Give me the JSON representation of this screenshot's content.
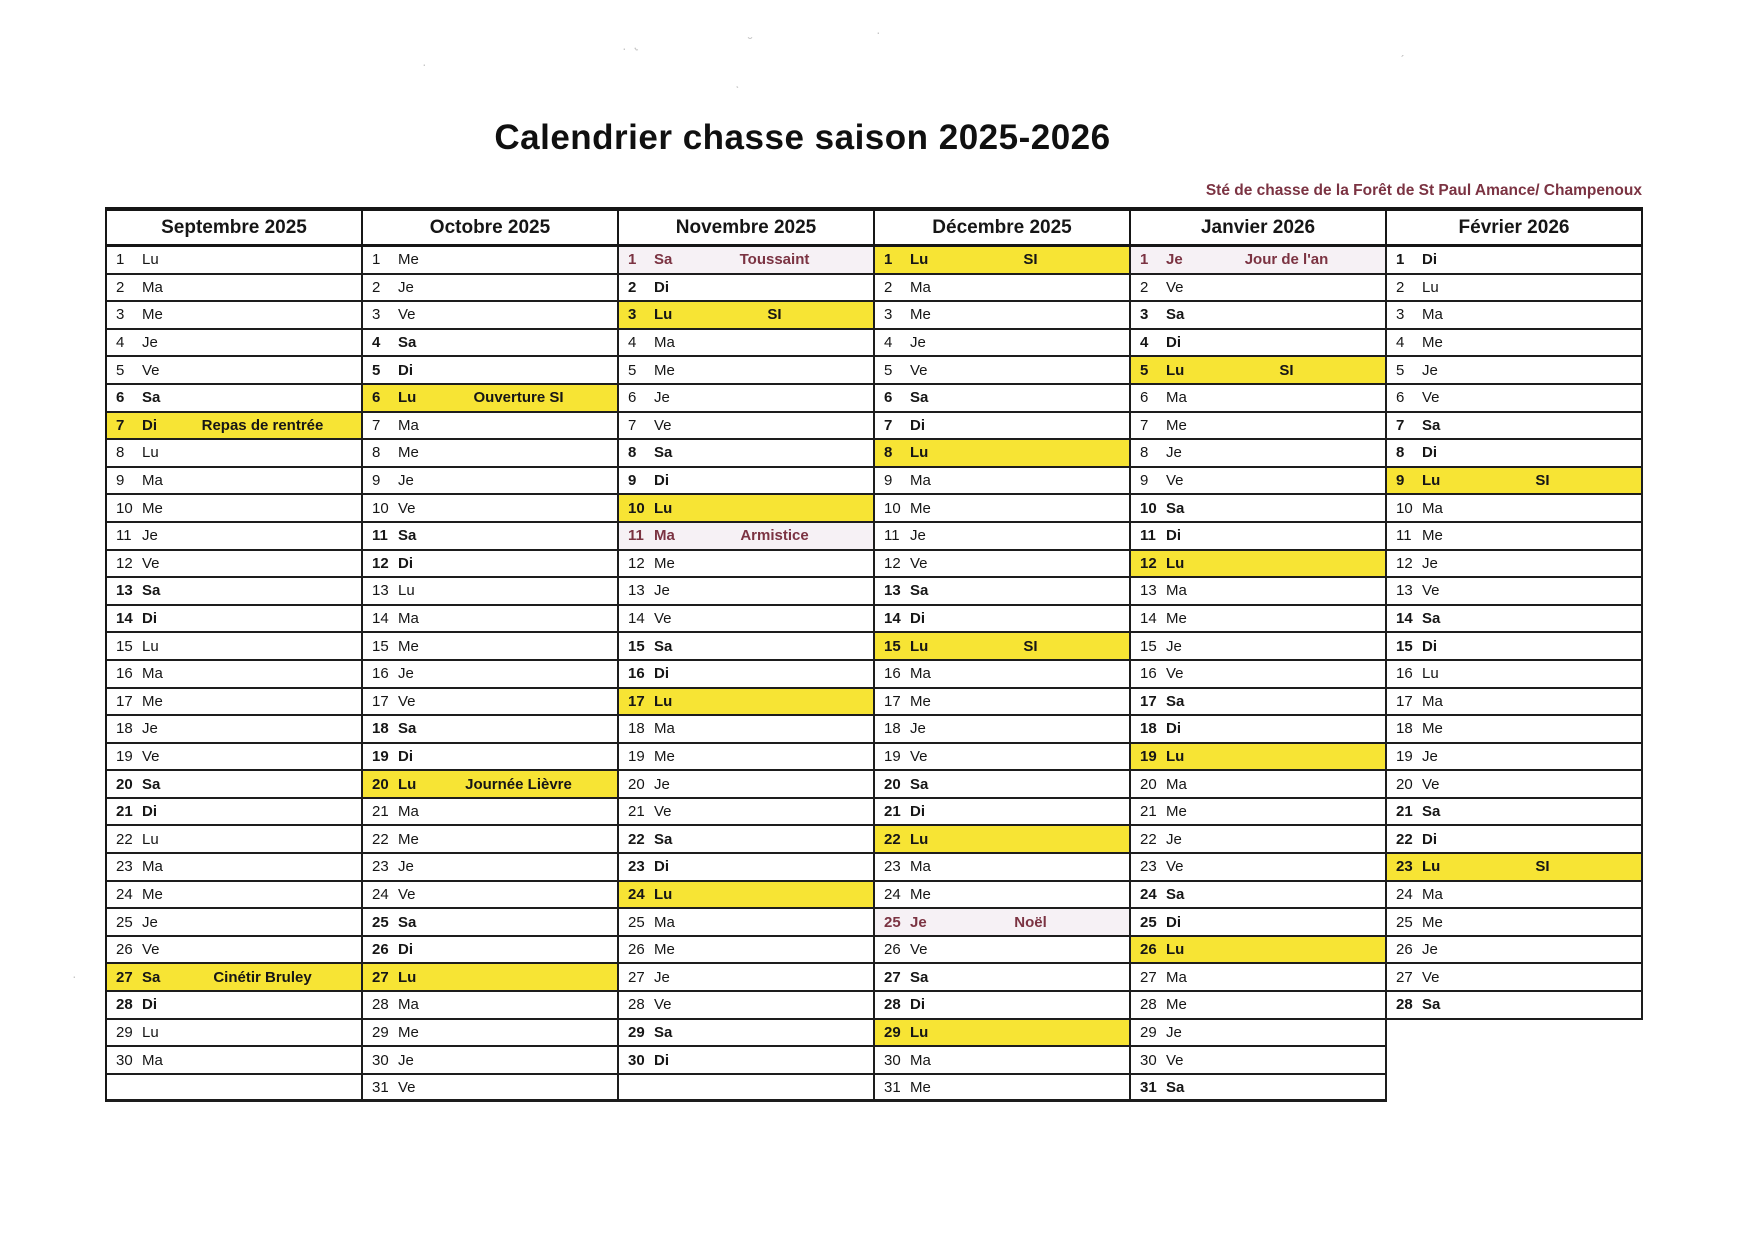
{
  "title": "Calendrier chasse saison 2025-2026",
  "subtitle": "Sté de chasse de la Forêt de St Paul Amance/ Champenoux",
  "colors": {
    "event_highlight": "#f7e434",
    "holiday_text": "#7b3342",
    "holiday_background": "#f6f1f5",
    "grid_line": "#1d1d1d"
  },
  "legend_note": "",
  "months": [
    {
      "name": "Septembre 2025",
      "days": [
        {
          "d": 1,
          "w": "Lu"
        },
        {
          "d": 2,
          "w": "Ma"
        },
        {
          "d": 3,
          "w": "Me"
        },
        {
          "d": 4,
          "w": "Je"
        },
        {
          "d": 5,
          "w": "Ve"
        },
        {
          "d": 6,
          "w": "Sa"
        },
        {
          "d": 7,
          "w": "Di",
          "note": "Repas de rentrée",
          "mark": "event"
        },
        {
          "d": 8,
          "w": "Lu"
        },
        {
          "d": 9,
          "w": "Ma"
        },
        {
          "d": 10,
          "w": "Me"
        },
        {
          "d": 11,
          "w": "Je"
        },
        {
          "d": 12,
          "w": "Ve"
        },
        {
          "d": 13,
          "w": "Sa"
        },
        {
          "d": 14,
          "w": "Di"
        },
        {
          "d": 15,
          "w": "Lu"
        },
        {
          "d": 16,
          "w": "Ma"
        },
        {
          "d": 17,
          "w": "Me"
        },
        {
          "d": 18,
          "w": "Je"
        },
        {
          "d": 19,
          "w": "Ve"
        },
        {
          "d": 20,
          "w": "Sa"
        },
        {
          "d": 21,
          "w": "Di"
        },
        {
          "d": 22,
          "w": "Lu"
        },
        {
          "d": 23,
          "w": "Ma"
        },
        {
          "d": 24,
          "w": "Me"
        },
        {
          "d": 25,
          "w": "Je"
        },
        {
          "d": 26,
          "w": "Ve"
        },
        {
          "d": 27,
          "w": "Sa",
          "note": "Cinétir Bruley",
          "mark": "event"
        },
        {
          "d": 28,
          "w": "Di"
        },
        {
          "d": 29,
          "w": "Lu"
        },
        {
          "d": 30,
          "w": "Ma"
        }
      ]
    },
    {
      "name": "Octobre 2025",
      "days": [
        {
          "d": 1,
          "w": "Me"
        },
        {
          "d": 2,
          "w": "Je"
        },
        {
          "d": 3,
          "w": "Ve"
        },
        {
          "d": 4,
          "w": "Sa"
        },
        {
          "d": 5,
          "w": "Di"
        },
        {
          "d": 6,
          "w": "Lu",
          "note": "Ouverture SI",
          "mark": "event"
        },
        {
          "d": 7,
          "w": "Ma"
        },
        {
          "d": 8,
          "w": "Me"
        },
        {
          "d": 9,
          "w": "Je"
        },
        {
          "d": 10,
          "w": "Ve"
        },
        {
          "d": 11,
          "w": "Sa"
        },
        {
          "d": 12,
          "w": "Di"
        },
        {
          "d": 13,
          "w": "Lu"
        },
        {
          "d": 14,
          "w": "Ma"
        },
        {
          "d": 15,
          "w": "Me"
        },
        {
          "d": 16,
          "w": "Je"
        },
        {
          "d": 17,
          "w": "Ve"
        },
        {
          "d": 18,
          "w": "Sa"
        },
        {
          "d": 19,
          "w": "Di"
        },
        {
          "d": 20,
          "w": "Lu",
          "note": "Journée Lièvre",
          "mark": "event"
        },
        {
          "d": 21,
          "w": "Ma"
        },
        {
          "d": 22,
          "w": "Me"
        },
        {
          "d": 23,
          "w": "Je"
        },
        {
          "d": 24,
          "w": "Ve"
        },
        {
          "d": 25,
          "w": "Sa"
        },
        {
          "d": 26,
          "w": "Di"
        },
        {
          "d": 27,
          "w": "Lu",
          "mark": "event"
        },
        {
          "d": 28,
          "w": "Ma"
        },
        {
          "d": 29,
          "w": "Me"
        },
        {
          "d": 30,
          "w": "Je"
        },
        {
          "d": 31,
          "w": "Ve"
        }
      ]
    },
    {
      "name": "Novembre 2025",
      "days": [
        {
          "d": 1,
          "w": "Sa",
          "note": "Toussaint",
          "mark": "holiday"
        },
        {
          "d": 2,
          "w": "Di"
        },
        {
          "d": 3,
          "w": "Lu",
          "note": "SI",
          "mark": "event"
        },
        {
          "d": 4,
          "w": "Ma"
        },
        {
          "d": 5,
          "w": "Me"
        },
        {
          "d": 6,
          "w": "Je"
        },
        {
          "d": 7,
          "w": "Ve"
        },
        {
          "d": 8,
          "w": "Sa"
        },
        {
          "d": 9,
          "w": "Di"
        },
        {
          "d": 10,
          "w": "Lu",
          "mark": "event"
        },
        {
          "d": 11,
          "w": "Ma",
          "note": "Armistice",
          "mark": "holiday"
        },
        {
          "d": 12,
          "w": "Me"
        },
        {
          "d": 13,
          "w": "Je"
        },
        {
          "d": 14,
          "w": "Ve"
        },
        {
          "d": 15,
          "w": "Sa"
        },
        {
          "d": 16,
          "w": "Di"
        },
        {
          "d": 17,
          "w": "Lu",
          "mark": "event"
        },
        {
          "d": 18,
          "w": "Ma"
        },
        {
          "d": 19,
          "w": "Me"
        },
        {
          "d": 20,
          "w": "Je"
        },
        {
          "d": 21,
          "w": "Ve"
        },
        {
          "d": 22,
          "w": "Sa"
        },
        {
          "d": 23,
          "w": "Di"
        },
        {
          "d": 24,
          "w": "Lu",
          "mark": "event"
        },
        {
          "d": 25,
          "w": "Ma"
        },
        {
          "d": 26,
          "w": "Me"
        },
        {
          "d": 27,
          "w": "Je"
        },
        {
          "d": 28,
          "w": "Ve"
        },
        {
          "d": 29,
          "w": "Sa"
        },
        {
          "d": 30,
          "w": "Di"
        }
      ]
    },
    {
      "name": "Décembre 2025",
      "days": [
        {
          "d": 1,
          "w": "Lu",
          "note": "SI",
          "mark": "event"
        },
        {
          "d": 2,
          "w": "Ma"
        },
        {
          "d": 3,
          "w": "Me"
        },
        {
          "d": 4,
          "w": "Je"
        },
        {
          "d": 5,
          "w": "Ve"
        },
        {
          "d": 6,
          "w": "Sa"
        },
        {
          "d": 7,
          "w": "Di"
        },
        {
          "d": 8,
          "w": "Lu",
          "mark": "event"
        },
        {
          "d": 9,
          "w": "Ma"
        },
        {
          "d": 10,
          "w": "Me"
        },
        {
          "d": 11,
          "w": "Je"
        },
        {
          "d": 12,
          "w": "Ve"
        },
        {
          "d": 13,
          "w": "Sa"
        },
        {
          "d": 14,
          "w": "Di"
        },
        {
          "d": 15,
          "w": "Lu",
          "note": "SI",
          "mark": "event"
        },
        {
          "d": 16,
          "w": "Ma"
        },
        {
          "d": 17,
          "w": "Me"
        },
        {
          "d": 18,
          "w": "Je"
        },
        {
          "d": 19,
          "w": "Ve"
        },
        {
          "d": 20,
          "w": "Sa"
        },
        {
          "d": 21,
          "w": "Di"
        },
        {
          "d": 22,
          "w": "Lu",
          "mark": "event"
        },
        {
          "d": 23,
          "w": "Ma"
        },
        {
          "d": 24,
          "w": "Me"
        },
        {
          "d": 25,
          "w": "Je",
          "note": "Noël",
          "mark": "holiday"
        },
        {
          "d": 26,
          "w": "Ve"
        },
        {
          "d": 27,
          "w": "Sa"
        },
        {
          "d": 28,
          "w": "Di"
        },
        {
          "d": 29,
          "w": "Lu",
          "mark": "event"
        },
        {
          "d": 30,
          "w": "Ma"
        },
        {
          "d": 31,
          "w": "Me"
        }
      ]
    },
    {
      "name": "Janvier 2026",
      "days": [
        {
          "d": 1,
          "w": "Je",
          "note": "Jour de l'an",
          "mark": "holiday"
        },
        {
          "d": 2,
          "w": "Ve"
        },
        {
          "d": 3,
          "w": "Sa"
        },
        {
          "d": 4,
          "w": "Di"
        },
        {
          "d": 5,
          "w": "Lu",
          "note": "SI",
          "mark": "event"
        },
        {
          "d": 6,
          "w": "Ma"
        },
        {
          "d": 7,
          "w": "Me"
        },
        {
          "d": 8,
          "w": "Je"
        },
        {
          "d": 9,
          "w": "Ve"
        },
        {
          "d": 10,
          "w": "Sa"
        },
        {
          "d": 11,
          "w": "Di"
        },
        {
          "d": 12,
          "w": "Lu",
          "mark": "event"
        },
        {
          "d": 13,
          "w": "Ma"
        },
        {
          "d": 14,
          "w": "Me"
        },
        {
          "d": 15,
          "w": "Je"
        },
        {
          "d": 16,
          "w": "Ve"
        },
        {
          "d": 17,
          "w": "Sa"
        },
        {
          "d": 18,
          "w": "Di"
        },
        {
          "d": 19,
          "w": "Lu",
          "mark": "event"
        },
        {
          "d": 20,
          "w": "Ma"
        },
        {
          "d": 21,
          "w": "Me"
        },
        {
          "d": 22,
          "w": "Je"
        },
        {
          "d": 23,
          "w": "Ve"
        },
        {
          "d": 24,
          "w": "Sa"
        },
        {
          "d": 25,
          "w": "Di"
        },
        {
          "d": 26,
          "w": "Lu",
          "mark": "event"
        },
        {
          "d": 27,
          "w": "Ma"
        },
        {
          "d": 28,
          "w": "Me"
        },
        {
          "d": 29,
          "w": "Je"
        },
        {
          "d": 30,
          "w": "Ve"
        },
        {
          "d": 31,
          "w": "Sa"
        }
      ]
    },
    {
      "name": "Février 2026",
      "days": [
        {
          "d": 1,
          "w": "Di"
        },
        {
          "d": 2,
          "w": "Lu"
        },
        {
          "d": 3,
          "w": "Ma"
        },
        {
          "d": 4,
          "w": "Me"
        },
        {
          "d": 5,
          "w": "Je"
        },
        {
          "d": 6,
          "w": "Ve"
        },
        {
          "d": 7,
          "w": "Sa"
        },
        {
          "d": 8,
          "w": "Di"
        },
        {
          "d": 9,
          "w": "Lu",
          "note": "SI",
          "mark": "event"
        },
        {
          "d": 10,
          "w": "Ma"
        },
        {
          "d": 11,
          "w": "Me"
        },
        {
          "d": 12,
          "w": "Je"
        },
        {
          "d": 13,
          "w": "Ve"
        },
        {
          "d": 14,
          "w": "Sa"
        },
        {
          "d": 15,
          "w": "Di"
        },
        {
          "d": 16,
          "w": "Lu"
        },
        {
          "d": 17,
          "w": "Ma"
        },
        {
          "d": 18,
          "w": "Me"
        },
        {
          "d": 19,
          "w": "Je"
        },
        {
          "d": 20,
          "w": "Ve"
        },
        {
          "d": 21,
          "w": "Sa"
        },
        {
          "d": 22,
          "w": "Di"
        },
        {
          "d": 23,
          "w": "Lu",
          "note": "SI",
          "mark": "event"
        },
        {
          "d": 24,
          "w": "Ma"
        },
        {
          "d": 25,
          "w": "Me"
        },
        {
          "d": 26,
          "w": "Je"
        },
        {
          "d": 27,
          "w": "Ve"
        },
        {
          "d": 28,
          "w": "Sa"
        }
      ]
    }
  ]
}
